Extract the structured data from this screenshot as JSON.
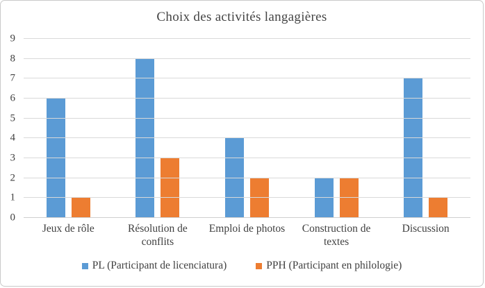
{
  "chart_data": {
    "type": "bar",
    "title": "Choix des activités langagières",
    "categories": [
      "Jeux de rôle",
      "Résolution de conflits",
      "Emploi de photos",
      "Construction de textes",
      "Discussion"
    ],
    "series": [
      {
        "name": "PL (Participant de licenciatura)",
        "color": "#5B9BD5",
        "values": [
          6,
          8,
          4,
          2,
          7
        ]
      },
      {
        "name": "PPH (Participant en philologie)",
        "color": "#ED7D31",
        "values": [
          1,
          3,
          2,
          2,
          1
        ]
      }
    ],
    "ylim": [
      0,
      9
    ],
    "yticks": [
      0,
      1,
      2,
      3,
      4,
      5,
      6,
      7,
      8,
      9
    ],
    "grid": true,
    "grid_color": "#D9D9D9",
    "text_color": "#404040",
    "legend_position": "bottom"
  }
}
